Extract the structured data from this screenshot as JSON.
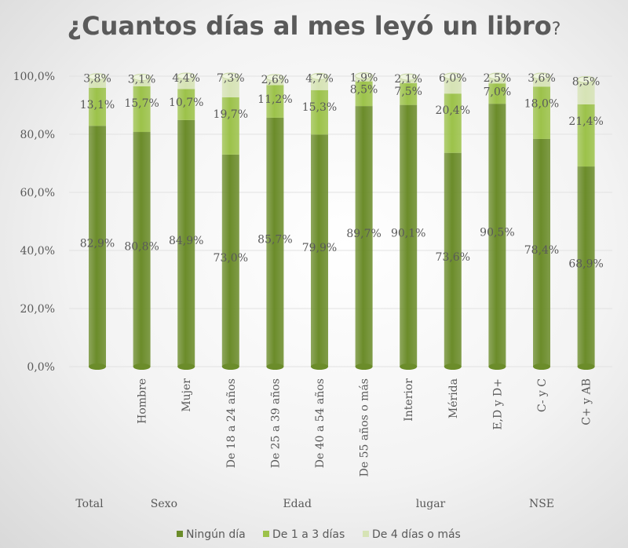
{
  "chart_data": {
    "type": "bar",
    "stacked": true,
    "title": "¿Cuantos días  al mes leyó un libro",
    "title_suffix": "?",
    "ylim": [
      0,
      100
    ],
    "y_ticks": [
      "0,0%",
      "20,0%",
      "40,0%",
      "60,0%",
      "80,0%",
      "100,0%"
    ],
    "categories": [
      "",
      "Hombre",
      "Mujer",
      "De 18 a 24 años",
      "De 25 a 39 años",
      "De 40 a 54 años",
      "De 55 años  o más",
      "Interior",
      "Mérida",
      "E,D y D+",
      "C- y C",
      "C+ y AB"
    ],
    "groups": [
      {
        "label": "Total",
        "span": [
          0,
          0
        ]
      },
      {
        "label": "Sexo",
        "span": [
          1,
          2
        ]
      },
      {
        "label": "Edad",
        "span": [
          3,
          6
        ]
      },
      {
        "label": "lugar",
        "span": [
          7,
          8
        ]
      },
      {
        "label": "NSE",
        "span": [
          9,
          11
        ]
      }
    ],
    "series": [
      {
        "name": "Ningún día",
        "color": "#6b8c2a",
        "values": [
          82.9,
          80.8,
          84.9,
          73.0,
          85.7,
          79.9,
          89.7,
          90.1,
          73.6,
          90.5,
          78.4,
          68.9
        ],
        "labels": [
          "82,9%",
          "80,8%",
          "84,9%",
          "73,0%",
          "85,7%",
          "79,9%",
          "89,7%",
          "90,1%",
          "73,6%",
          "90,5%",
          "78,4%",
          "68,9%"
        ]
      },
      {
        "name": "De 1 a 3 días",
        "color": "#9cc24a",
        "values": [
          13.1,
          15.7,
          10.7,
          19.7,
          11.2,
          15.3,
          8.5,
          7.5,
          20.4,
          7.0,
          18.0,
          21.4
        ],
        "labels": [
          "13,1%",
          "15,7%",
          "10,7%",
          "19,7%",
          "11,2%",
          "15,3%",
          "8,5%",
          "7,5%",
          "20,4%",
          "7,0%",
          "18,0%",
          "21,4%"
        ]
      },
      {
        "name": "De 4 días  o más",
        "color": "#d6e3b5",
        "values": [
          3.8,
          3.1,
          4.4,
          7.3,
          2.6,
          4.7,
          1.9,
          2.1,
          6.0,
          2.5,
          3.6,
          8.5
        ],
        "labels": [
          "3,8%",
          "3,1%",
          "4,4%",
          "7,3%",
          "2,6%",
          "4,7%",
          "1,9%",
          "2,1%",
          "6,0%",
          "2,5%",
          "3,6%",
          "8,5%"
        ]
      }
    ],
    "legend": "bottom",
    "grid": true
  }
}
